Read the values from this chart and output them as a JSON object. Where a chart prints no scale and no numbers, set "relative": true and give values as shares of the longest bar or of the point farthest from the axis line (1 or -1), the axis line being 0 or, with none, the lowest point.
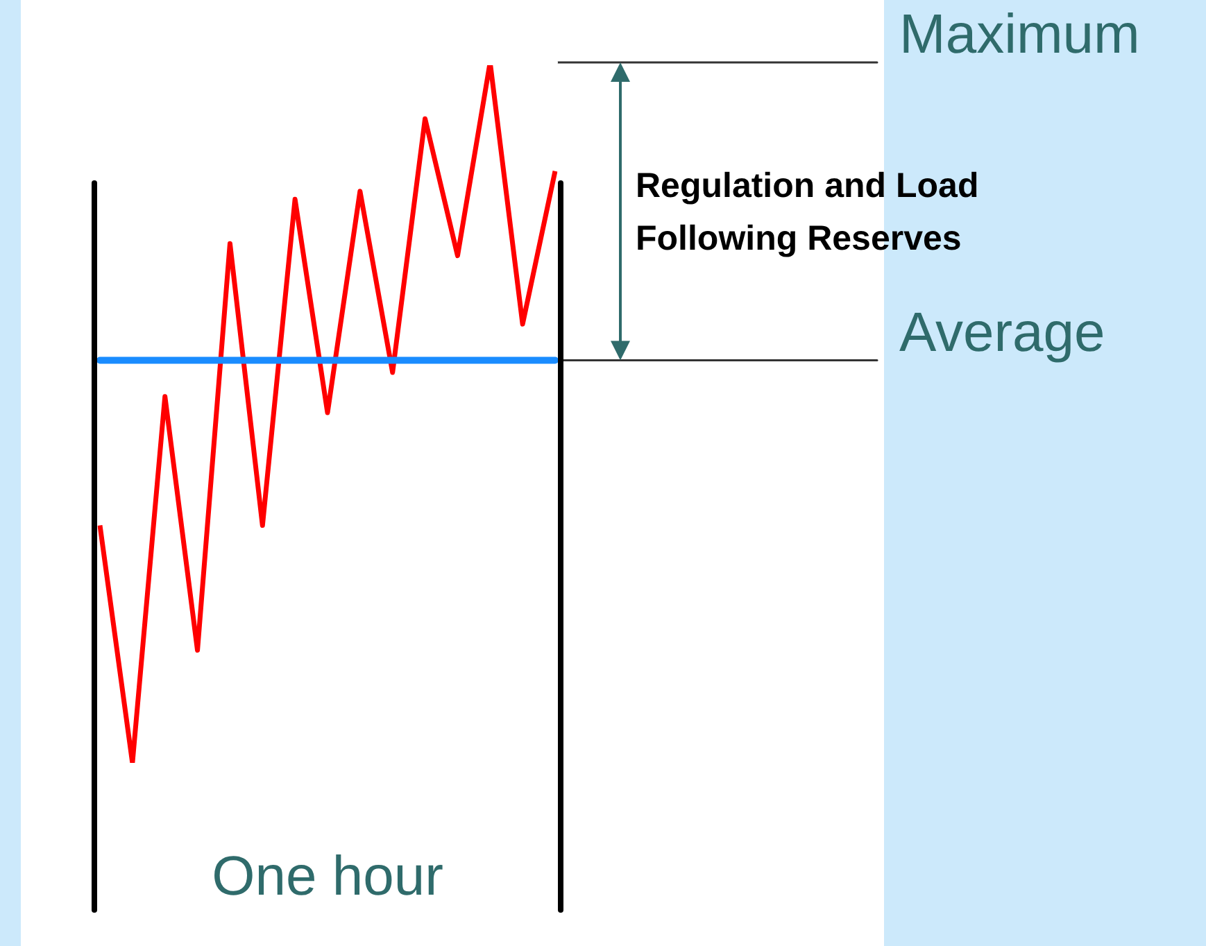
{
  "chart_data": {
    "type": "line",
    "relative": true,
    "legend": false,
    "marker": "none",
    "line_style": "solid",
    "xlabel": "One hour",
    "categories": [
      null,
      null,
      null,
      null,
      null,
      null,
      null,
      null,
      null,
      null,
      null,
      null,
      null,
      null,
      null
    ],
    "series": [
      {
        "color": "#ff0000",
        "values": [
          -0.41,
          -1,
          -0.09,
          -0.72,
          0.29,
          -0.41,
          0.4,
          -0.13,
          0.42,
          -0.03,
          0.6,
          0.26,
          0.74,
          0.09,
          0.47
        ]
      }
    ],
    "ref_lines": [
      {
        "axis": "y",
        "value": 0,
        "label": "Average",
        "color": "#1a8cff"
      },
      {
        "axis": "y",
        "value": 0.74,
        "label": "Maximum",
        "color": "#333333"
      }
    ],
    "annotations": [
      "Regulation and Load Following Reserves"
    ]
  }
}
